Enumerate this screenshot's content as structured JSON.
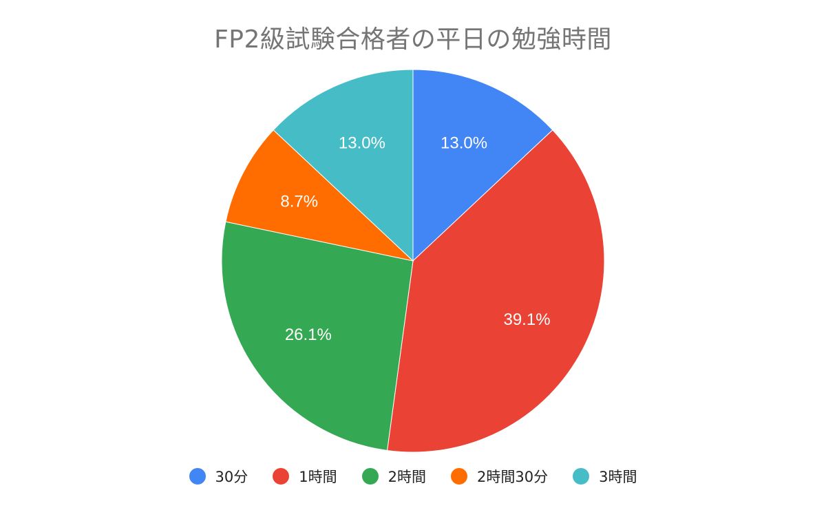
{
  "chart_data": {
    "type": "pie",
    "title": "FP2級試験合格者の平日の勉強時間",
    "slices": [
      {
        "label": "30分",
        "value": 13.0,
        "display": "13.0%",
        "color": "#4285f4"
      },
      {
        "label": "1時間",
        "value": 39.1,
        "display": "39.1%",
        "color": "#ea4335"
      },
      {
        "label": "2時間",
        "value": 26.1,
        "display": "26.1%",
        "color": "#34a853"
      },
      {
        "label": "2時間30分",
        "value": 8.7,
        "display": "8.7%",
        "color": "#ff6d01"
      },
      {
        "label": "3時間",
        "value": 13.0,
        "display": "13.0%",
        "color": "#46bdc6"
      }
    ],
    "legend": "bottom"
  }
}
